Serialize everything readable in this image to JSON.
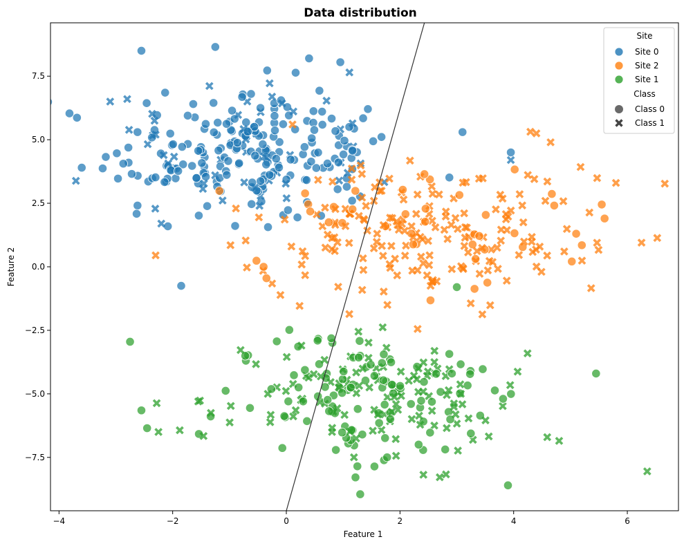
{
  "chart_data": {
    "type": "scatter",
    "title": "Data distribution",
    "xlabel": "Feature 1",
    "ylabel": "Feature 2",
    "xlim": [
      -4.15,
      6.9
    ],
    "ylim": [
      -9.6,
      9.6
    ],
    "xticks": [
      -4,
      -2,
      0,
      2,
      4,
      6
    ],
    "xtick_labels": [
      "−4",
      "−2",
      "0",
      "2",
      "4",
      "6"
    ],
    "yticks": [
      -7.5,
      -5.0,
      -2.5,
      0.0,
      2.5,
      5.0,
      7.5
    ],
    "ytick_labels": [
      "−7.5",
      "−5.0",
      "−2.5",
      "0.0",
      "2.5",
      "5.0",
      "7.5"
    ],
    "grid": false,
    "legend_position": "top-right",
    "legend": {
      "hue_title": "Site",
      "style_title": "Class",
      "hue_entries": [
        {
          "label": "Site 0",
          "color": "#1f77b4"
        },
        {
          "label": "Site 2",
          "color": "#ff7f0e"
        },
        {
          "label": "Site 1",
          "color": "#2ca02c"
        }
      ],
      "style_entries": [
        {
          "label": "Class 0",
          "marker": "circle"
        },
        {
          "label": "Class 1",
          "marker": "x"
        }
      ]
    },
    "decision_line": {
      "x1": 0.0,
      "y1": -9.6,
      "x2": 2.43,
      "y2": 9.6,
      "color": "#333333"
    },
    "series": [
      {
        "name": "Site 0",
        "color": "#1f77b4",
        "cluster": {
          "center": [
            -0.6,
            4.5
          ],
          "spread": [
            1.25,
            1.35
          ],
          "n": 260
        },
        "fixed_points": [
          [
            -2.55,
            8.5,
            0
          ],
          [
            -1.25,
            8.65,
            0
          ],
          [
            0.4,
            8.2,
            0
          ],
          [
            0.95,
            8.05,
            0
          ],
          [
            3.1,
            5.3,
            0
          ],
          [
            3.95,
            4.5,
            0
          ],
          [
            -3.6,
            3.9,
            0
          ],
          [
            -1.85,
            -0.75,
            0
          ],
          [
            -2.3,
            5.2,
            1
          ],
          [
            -2.2,
            1.7,
            1
          ],
          [
            3.95,
            4.2,
            1
          ],
          [
            -3.1,
            6.5,
            1
          ],
          [
            -2.8,
            6.6,
            1
          ]
        ]
      },
      {
        "name": "Site 2",
        "color": "#ff7f0e",
        "cluster": {
          "center": [
            2.3,
            1.4
          ],
          "spread": [
            1.45,
            1.4
          ],
          "n": 230
        },
        "fixed_points": [
          [
            -0.4,
            0.0,
            0
          ],
          [
            -0.35,
            -0.45,
            0
          ],
          [
            5.55,
            2.45,
            0
          ],
          [
            5.1,
            1.3,
            0
          ],
          [
            5.2,
            0.85,
            0
          ],
          [
            5.6,
            1.9,
            0
          ],
          [
            6.25,
            0.95,
            1
          ],
          [
            4.4,
            5.25,
            1
          ],
          [
            4.65,
            4.9,
            1
          ],
          [
            5.8,
            3.3,
            1
          ],
          [
            -2.3,
            0.45,
            1
          ]
        ]
      },
      {
        "name": "Site 1",
        "color": "#2ca02c",
        "cluster": {
          "center": [
            1.45,
            -5.0
          ],
          "spread": [
            1.35,
            1.25
          ],
          "n": 230
        },
        "fixed_points": [
          [
            -2.75,
            -2.95,
            0
          ],
          [
            -2.55,
            -5.65,
            0
          ],
          [
            -2.45,
            -6.35,
            0
          ],
          [
            1.3,
            -8.95,
            0
          ],
          [
            1.25,
            -7.85,
            0
          ],
          [
            3.9,
            -8.6,
            0
          ],
          [
            5.45,
            -4.2,
            0
          ],
          [
            6.35,
            -8.05,
            1
          ],
          [
            -2.25,
            -6.5,
            1
          ],
          [
            -1.55,
            -5.3,
            1
          ],
          [
            3.0,
            -0.8,
            0
          ],
          [
            4.8,
            -6.85,
            1
          ]
        ]
      }
    ]
  }
}
